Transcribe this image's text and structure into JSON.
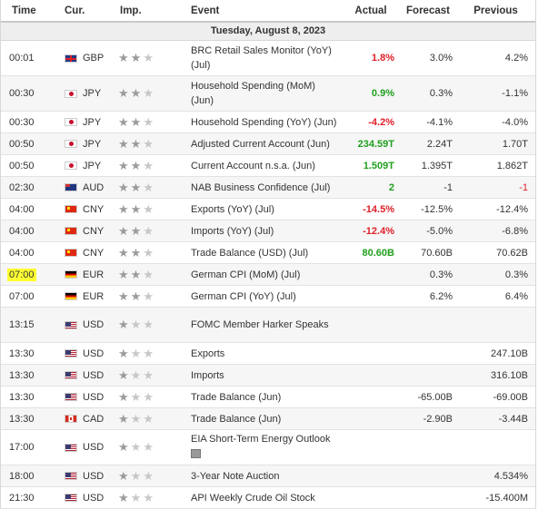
{
  "headers": {
    "time": "Time",
    "cur": "Cur.",
    "imp": "Imp.",
    "event": "Event",
    "actual": "Actual",
    "forecast": "Forecast",
    "previous": "Previous"
  },
  "date": "Tuesday, August 8, 2023",
  "colors": {
    "negative": "#e0202a",
    "positive": "#21a01f",
    "highlight": "#ffff33"
  },
  "rows": [
    {
      "time": "00:01",
      "cur": "GBP",
      "stars": 2,
      "event": "BRC Retail Sales Monitor (YoY) (Jul)",
      "actual": "1.8%",
      "actual_color": "red",
      "forecast": "3.0%",
      "previous": "4.2%",
      "prev_color": "",
      "h": 38
    },
    {
      "time": "00:30",
      "cur": "JPY",
      "stars": 2,
      "event": "Household Spending (MoM) (Jun)",
      "actual": "0.9%",
      "actual_color": "green",
      "forecast": "0.3%",
      "previous": "-1.1%",
      "prev_color": "",
      "h": 38
    },
    {
      "time": "00:30",
      "cur": "JPY",
      "stars": 2,
      "event": "Household Spending (YoY) (Jun)",
      "actual": "-4.2%",
      "actual_color": "red",
      "forecast": "-4.1%",
      "previous": "-4.0%",
      "prev_color": "",
      "h": 23
    },
    {
      "time": "00:50",
      "cur": "JPY",
      "stars": 2,
      "event": "Adjusted Current Account (Jun)",
      "actual": "234.59T",
      "actual_color": "green",
      "forecast": "2.24T",
      "previous": "1.70T",
      "prev_color": "",
      "h": 23
    },
    {
      "time": "00:50",
      "cur": "JPY",
      "stars": 2,
      "event": "Current Account n.s.a. (Jun)",
      "actual": "1.509T",
      "actual_color": "green",
      "forecast": "1.395T",
      "previous": "1.862T",
      "prev_color": "",
      "h": 23
    },
    {
      "time": "02:30",
      "cur": "AUD",
      "stars": 2,
      "event": "NAB Business Confidence (Jul)",
      "actual": "2",
      "actual_color": "green",
      "forecast": "-1",
      "previous": "-1",
      "prev_color": "red",
      "h": 23
    },
    {
      "time": "04:00",
      "cur": "CNY",
      "stars": 2,
      "event": "Exports (YoY) (Jul)",
      "actual": "-14.5%",
      "actual_color": "red",
      "forecast": "-12.5%",
      "previous": "-12.4%",
      "prev_color": "",
      "h": 23
    },
    {
      "time": "04:00",
      "cur": "CNY",
      "stars": 2,
      "event": "Imports (YoY) (Jul)",
      "actual": "-12.4%",
      "actual_color": "red",
      "forecast": "-5.0%",
      "previous": "-6.8%",
      "prev_color": "",
      "h": 23
    },
    {
      "time": "04:00",
      "cur": "CNY",
      "stars": 2,
      "event": "Trade Balance (USD) (Jul)",
      "actual": "80.60B",
      "actual_color": "green",
      "forecast": "70.60B",
      "previous": "70.62B",
      "prev_color": "",
      "h": 23
    },
    {
      "time": "07:00",
      "cur": "EUR",
      "stars": 2,
      "event": "German CPI (MoM) (Jul)",
      "actual": "",
      "actual_color": "",
      "forecast": "0.3%",
      "previous": "0.3%",
      "prev_color": "",
      "h": 23,
      "highlight": true
    },
    {
      "time": "07:00",
      "cur": "EUR",
      "stars": 2,
      "event": "German CPI (YoY) (Jul)",
      "actual": "",
      "actual_color": "",
      "forecast": "6.2%",
      "previous": "6.4%",
      "prev_color": "",
      "h": 23
    },
    {
      "time": "13:15",
      "cur": "USD",
      "stars": 1,
      "event": "FOMC Member Harker Speaks",
      "actual": "",
      "actual_color": "",
      "forecast": "",
      "previous": "",
      "prev_color": "",
      "h": 38
    },
    {
      "time": "13:30",
      "cur": "USD",
      "stars": 1,
      "event": "Exports",
      "actual": "",
      "actual_color": "",
      "forecast": "",
      "previous": "247.10B",
      "prev_color": "",
      "h": 23
    },
    {
      "time": "13:30",
      "cur": "USD",
      "stars": 1,
      "event": "Imports",
      "actual": "",
      "actual_color": "",
      "forecast": "",
      "previous": "316.10B",
      "prev_color": "",
      "h": 23
    },
    {
      "time": "13:30",
      "cur": "USD",
      "stars": 1,
      "event": "Trade Balance (Jun)",
      "actual": "",
      "actual_color": "",
      "forecast": "-65.00B",
      "previous": "-69.00B",
      "prev_color": "",
      "h": 23
    },
    {
      "time": "13:30",
      "cur": "CAD",
      "stars": 1,
      "event": "Trade Balance (Jun)",
      "actual": "",
      "actual_color": "",
      "forecast": "-2.90B",
      "previous": "-3.44B",
      "prev_color": "",
      "h": 23
    },
    {
      "time": "17:00",
      "cur": "USD",
      "stars": 1,
      "event": "EIA Short-Term Energy Outlook",
      "actual": "",
      "actual_color": "",
      "forecast": "",
      "previous": "",
      "prev_color": "",
      "h": 38,
      "doc": true
    },
    {
      "time": "18:00",
      "cur": "USD",
      "stars": 1,
      "event": "3-Year Note Auction",
      "actual": "",
      "actual_color": "",
      "forecast": "",
      "previous": "4.534%",
      "prev_color": "",
      "h": 23
    },
    {
      "time": "21:30",
      "cur": "USD",
      "stars": 1,
      "event": "API Weekly Crude Oil Stock",
      "actual": "",
      "actual_color": "",
      "forecast": "",
      "previous": "-15.400M",
      "prev_color": "",
      "h": 23
    }
  ]
}
